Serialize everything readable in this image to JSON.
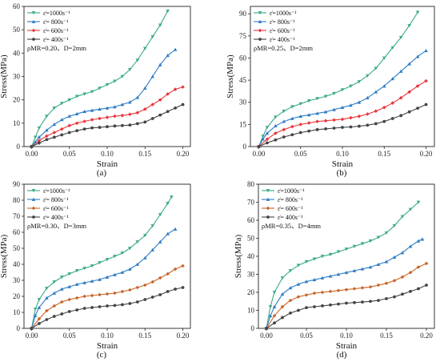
{
  "chart_data": [
    {
      "type": "line",
      "caption": "(a)",
      "annotation": "ρMR=0.20、D=2mm",
      "xlabel": "Strain",
      "ylabel": "Stress(MPa)",
      "xlim": [
        -0.01,
        0.21
      ],
      "ylim": [
        0,
        60
      ],
      "xticks": [
        0.0,
        0.05,
        0.1,
        0.15,
        0.2
      ],
      "xtick_labels": [
        "0.00",
        "0.05",
        "0.10",
        "0.15",
        "0.20"
      ],
      "yticks": [
        0,
        10,
        20,
        30,
        40,
        50,
        60
      ],
      "ytick_labels": [
        "0",
        "10",
        "20",
        "30",
        "40",
        "50",
        "60"
      ],
      "legend_position": "top-left",
      "series": [
        {
          "name": "ε̇=1000s⁻¹",
          "color": "#3aaa88",
          "marker": "triangle-down",
          "x": [
            0,
            0.005,
            0.01,
            0.02,
            0.03,
            0.04,
            0.05,
            0.06,
            0.07,
            0.08,
            0.09,
            0.1,
            0.11,
            0.12,
            0.13,
            0.14,
            0.15,
            0.16,
            0.17,
            0.18
          ],
          "y": [
            0,
            4,
            8,
            13,
            16.5,
            18.5,
            20,
            21.5,
            22.5,
            23.5,
            25,
            26.5,
            28,
            30,
            33,
            37,
            42,
            47,
            52,
            58
          ]
        },
        {
          "name": "ε̇= 800s⁻¹",
          "color": "#2e7cc4",
          "marker": "triangle-up",
          "x": [
            0,
            0.005,
            0.01,
            0.02,
            0.03,
            0.04,
            0.05,
            0.06,
            0.07,
            0.08,
            0.09,
            0.1,
            0.11,
            0.12,
            0.13,
            0.14,
            0.15,
            0.16,
            0.17,
            0.18,
            0.19
          ],
          "y": [
            0,
            2,
            4,
            7,
            9.5,
            11.5,
            13,
            14,
            15,
            15.5,
            16,
            16.5,
            17,
            18,
            19,
            21,
            25,
            30,
            35,
            39,
            41.5
          ]
        },
        {
          "name": "ε̇= 600s⁻¹",
          "color": "#e8363c",
          "marker": "diamond",
          "x": [
            0,
            0.01,
            0.02,
            0.03,
            0.04,
            0.05,
            0.06,
            0.07,
            0.08,
            0.09,
            0.1,
            0.11,
            0.12,
            0.13,
            0.14,
            0.15,
            0.16,
            0.17,
            0.18,
            0.19,
            0.2
          ],
          "y": [
            0,
            2.5,
            4.5,
            6,
            7.5,
            9,
            10,
            10.8,
            11.5,
            12,
            12.5,
            13,
            13.3,
            13.8,
            14.5,
            16,
            18,
            20,
            22.5,
            24.5,
            25.5
          ]
        },
        {
          "name": "ε̇= 400s⁻¹",
          "color": "#444444",
          "marker": "circle",
          "x": [
            0,
            0.01,
            0.02,
            0.03,
            0.04,
            0.05,
            0.06,
            0.07,
            0.08,
            0.09,
            0.1,
            0.11,
            0.12,
            0.13,
            0.14,
            0.15,
            0.16,
            0.17,
            0.18,
            0.19,
            0.2
          ],
          "y": [
            0,
            1.5,
            3,
            4,
            5,
            6,
            6.8,
            7.5,
            8,
            8.2,
            8.5,
            8.8,
            9,
            9.2,
            9.8,
            10.5,
            12,
            13.5,
            15,
            16.5,
            18
          ]
        }
      ]
    },
    {
      "type": "line",
      "caption": "(b)",
      "annotation": "ρMR=0.25、D=2mm",
      "xlabel": "Strain",
      "ylabel": "Stress(MPa)",
      "xlim": [
        -0.01,
        0.21
      ],
      "ylim": [
        0,
        95
      ],
      "xticks": [
        0.0,
        0.05,
        0.1,
        0.15,
        0.2
      ],
      "xtick_labels": [
        "0.00",
        "0.05",
        "0.10",
        "0.15",
        "0.20"
      ],
      "yticks": [
        0,
        15,
        30,
        45,
        60,
        75,
        90
      ],
      "ytick_labels": [
        "0",
        "15",
        "30",
        "45",
        "60",
        "75",
        "90"
      ],
      "legend_position": "top-left",
      "series": [
        {
          "name": "ε̇=1000s⁻¹",
          "color": "#3aaa88",
          "marker": "triangle-down",
          "x": [
            0,
            0.005,
            0.01,
            0.02,
            0.03,
            0.04,
            0.05,
            0.06,
            0.07,
            0.08,
            0.09,
            0.1,
            0.11,
            0.12,
            0.13,
            0.14,
            0.15,
            0.16,
            0.17,
            0.18,
            0.19
          ],
          "y": [
            0,
            7,
            13,
            20,
            24,
            27,
            29,
            31,
            32.5,
            34,
            36,
            38.5,
            41,
            44,
            48,
            53,
            60,
            67,
            74,
            82,
            91
          ]
        },
        {
          "name": "ε̇= 800s⁻¹",
          "color": "#2e7cc4",
          "marker": "triangle-up",
          "x": [
            0,
            0.005,
            0.01,
            0.02,
            0.03,
            0.04,
            0.05,
            0.06,
            0.07,
            0.08,
            0.09,
            0.1,
            0.11,
            0.12,
            0.13,
            0.14,
            0.15,
            0.16,
            0.17,
            0.18,
            0.19,
            0.2
          ],
          "y": [
            0,
            5,
            9,
            14,
            17,
            19,
            20.5,
            21.5,
            22.5,
            23.5,
            25,
            26.5,
            28,
            30,
            33,
            37,
            41,
            46,
            51,
            56,
            61,
            65
          ]
        },
        {
          "name": "ε̇= 600s⁻¹",
          "color": "#e8363c",
          "marker": "diamond",
          "x": [
            0,
            0.01,
            0.02,
            0.03,
            0.04,
            0.05,
            0.06,
            0.07,
            0.08,
            0.09,
            0.1,
            0.11,
            0.12,
            0.13,
            0.14,
            0.15,
            0.16,
            0.17,
            0.18,
            0.19,
            0.2
          ],
          "y": [
            0,
            5,
            9,
            11.5,
            13.5,
            15,
            16,
            17,
            17.5,
            18,
            18.5,
            19.5,
            20.5,
            22,
            24,
            26.5,
            29.5,
            33,
            37,
            41,
            44.5
          ]
        },
        {
          "name": "ε̇= 400s⁻¹",
          "color": "#444444",
          "marker": "circle",
          "x": [
            0,
            0.01,
            0.02,
            0.03,
            0.04,
            0.05,
            0.06,
            0.07,
            0.08,
            0.09,
            0.1,
            0.11,
            0.12,
            0.13,
            0.14,
            0.15,
            0.16,
            0.17,
            0.18,
            0.19,
            0.2
          ],
          "y": [
            0,
            2.5,
            4.5,
            6.5,
            8,
            9.5,
            10.5,
            11.5,
            12,
            12.5,
            13,
            13.3,
            13.8,
            14.5,
            15.5,
            17,
            19,
            21,
            23.5,
            26,
            28.5
          ]
        }
      ]
    },
    {
      "type": "line",
      "caption": "(c)",
      "annotation": "ρMR=0.30、D=3mm",
      "xlabel": "Strain",
      "ylabel": "Stress(MPa)",
      "xlim": [
        -0.01,
        0.21
      ],
      "ylim": [
        0,
        90
      ],
      "xticks": [
        0.0,
        0.05,
        0.1,
        0.15,
        0.2
      ],
      "xtick_labels": [
        "0.00",
        "0.05",
        "0.10",
        "0.15",
        "0.20"
      ],
      "yticks": [
        0,
        10,
        20,
        30,
        40,
        50,
        60,
        70,
        80,
        90
      ],
      "ytick_labels": [
        "0",
        "10",
        "20",
        "30",
        "40",
        "50",
        "60",
        "70",
        "80",
        "90"
      ],
      "legend_position": "top-left",
      "series": [
        {
          "name": "ε̇=1000s⁻¹",
          "color": "#3aaa88",
          "marker": "triangle-down",
          "x": [
            0,
            0.005,
            0.01,
            0.02,
            0.03,
            0.04,
            0.05,
            0.06,
            0.07,
            0.08,
            0.09,
            0.1,
            0.11,
            0.12,
            0.13,
            0.14,
            0.15,
            0.16,
            0.17,
            0.18,
            0.185
          ],
          "y": [
            0,
            12,
            18,
            25,
            29,
            32,
            34,
            36,
            37.5,
            39,
            41,
            43,
            45,
            47,
            50,
            54,
            58,
            64,
            71,
            78,
            82
          ]
        },
        {
          "name": "ε̇= 800s⁻¹",
          "color": "#2e7cc4",
          "marker": "triangle-up",
          "x": [
            0,
            0.005,
            0.01,
            0.02,
            0.03,
            0.04,
            0.05,
            0.06,
            0.07,
            0.08,
            0.09,
            0.1,
            0.11,
            0.12,
            0.13,
            0.14,
            0.15,
            0.16,
            0.17,
            0.18,
            0.19
          ],
          "y": [
            0,
            8,
            13,
            19,
            22,
            24.5,
            26,
            27.5,
            28.5,
            29.5,
            30.5,
            32,
            33.5,
            35,
            37,
            40,
            44,
            49,
            54,
            59,
            62
          ]
        },
        {
          "name": "ε̇= 600s⁻¹",
          "color": "#c86428",
          "marker": "diamond",
          "x": [
            0,
            0.01,
            0.02,
            0.03,
            0.04,
            0.05,
            0.06,
            0.07,
            0.08,
            0.09,
            0.1,
            0.11,
            0.12,
            0.13,
            0.14,
            0.15,
            0.16,
            0.17,
            0.18,
            0.19,
            0.2
          ],
          "y": [
            0,
            6,
            11,
            14,
            16.5,
            18,
            19,
            20,
            20.5,
            21,
            21.5,
            22,
            23,
            24,
            25.5,
            27,
            29,
            31.5,
            34,
            37,
            39
          ]
        },
        {
          "name": "ε̇= 400s⁻¹",
          "color": "#444444",
          "marker": "circle",
          "x": [
            0,
            0.01,
            0.02,
            0.03,
            0.04,
            0.05,
            0.06,
            0.07,
            0.08,
            0.09,
            0.1,
            0.11,
            0.12,
            0.13,
            0.14,
            0.15,
            0.16,
            0.17,
            0.18,
            0.19,
            0.2
          ],
          "y": [
            0,
            3,
            5.5,
            7.5,
            9,
            10.5,
            11.5,
            12.5,
            13,
            13.5,
            14,
            14.3,
            14.8,
            15.5,
            16.5,
            18,
            19.5,
            21,
            23,
            24.5,
            25.5
          ]
        }
      ]
    },
    {
      "type": "line",
      "caption": "(d)",
      "annotation": "ρMR=0.35、D=4mm",
      "xlabel": "Strain",
      "ylabel": "Stress(MPa)",
      "xlim": [
        -0.01,
        0.21
      ],
      "ylim": [
        0,
        80
      ],
      "xticks": [
        0.0,
        0.05,
        0.1,
        0.15,
        0.2
      ],
      "xtick_labels": [
        "0.00",
        "0.05",
        "0.10",
        "0.15",
        "0.20"
      ],
      "yticks": [
        0,
        10,
        20,
        30,
        40,
        50,
        60,
        70,
        80
      ],
      "ytick_labels": [
        "0",
        "10",
        "20",
        "30",
        "40",
        "50",
        "60",
        "70",
        "80"
      ],
      "legend_position": "top-left",
      "series": [
        {
          "name": "ε̇=1000s⁻¹",
          "color": "#3aaa88",
          "marker": "triangle-down",
          "x": [
            0,
            0.005,
            0.01,
            0.02,
            0.03,
            0.04,
            0.05,
            0.06,
            0.07,
            0.08,
            0.09,
            0.1,
            0.11,
            0.12,
            0.13,
            0.14,
            0.15,
            0.16,
            0.17,
            0.18,
            0.19
          ],
          "y": [
            0,
            12,
            20,
            28,
            32,
            35,
            37,
            38.5,
            40,
            41,
            42.5,
            44,
            45.5,
            47,
            48.5,
            50.5,
            53,
            57,
            62,
            66,
            70
          ]
        },
        {
          "name": "ε̇= 800s⁻¹",
          "color": "#2e7cc4",
          "marker": "triangle-up",
          "x": [
            0,
            0.005,
            0.01,
            0.02,
            0.03,
            0.04,
            0.05,
            0.06,
            0.07,
            0.08,
            0.09,
            0.1,
            0.11,
            0.12,
            0.13,
            0.14,
            0.15,
            0.16,
            0.17,
            0.18,
            0.19,
            0.195
          ],
          "y": [
            0,
            7,
            12,
            19,
            22.5,
            24.5,
            26,
            27,
            28,
            29,
            30,
            31,
            32,
            33,
            34,
            35.5,
            37,
            39.5,
            42,
            45.5,
            48.5,
            49.5
          ]
        },
        {
          "name": "ε̇= 600s⁻¹",
          "color": "#c86428",
          "marker": "diamond",
          "x": [
            0,
            0.01,
            0.02,
            0.03,
            0.04,
            0.05,
            0.06,
            0.07,
            0.08,
            0.09,
            0.1,
            0.11,
            0.12,
            0.13,
            0.14,
            0.15,
            0.16,
            0.17,
            0.18,
            0.19,
            0.2
          ],
          "y": [
            0,
            7,
            12,
            15.5,
            17.5,
            18.5,
            19.5,
            20,
            20.5,
            21,
            21.5,
            22,
            22.5,
            23,
            24,
            25,
            26.5,
            28.5,
            31,
            34,
            36
          ]
        },
        {
          "name": "ε̇= 400s⁻¹",
          "color": "#444444",
          "marker": "circle",
          "x": [
            0,
            0.01,
            0.02,
            0.03,
            0.04,
            0.05,
            0.06,
            0.07,
            0.08,
            0.09,
            0.1,
            0.11,
            0.12,
            0.13,
            0.14,
            0.15,
            0.16,
            0.17,
            0.18,
            0.19,
            0.2
          ],
          "y": [
            0,
            3,
            6,
            8.5,
            10,
            11.5,
            12,
            12.5,
            13,
            13.5,
            14,
            14.3,
            14.6,
            15,
            15.5,
            16.5,
            17.5,
            19,
            20.5,
            22,
            24
          ]
        }
      ]
    }
  ]
}
